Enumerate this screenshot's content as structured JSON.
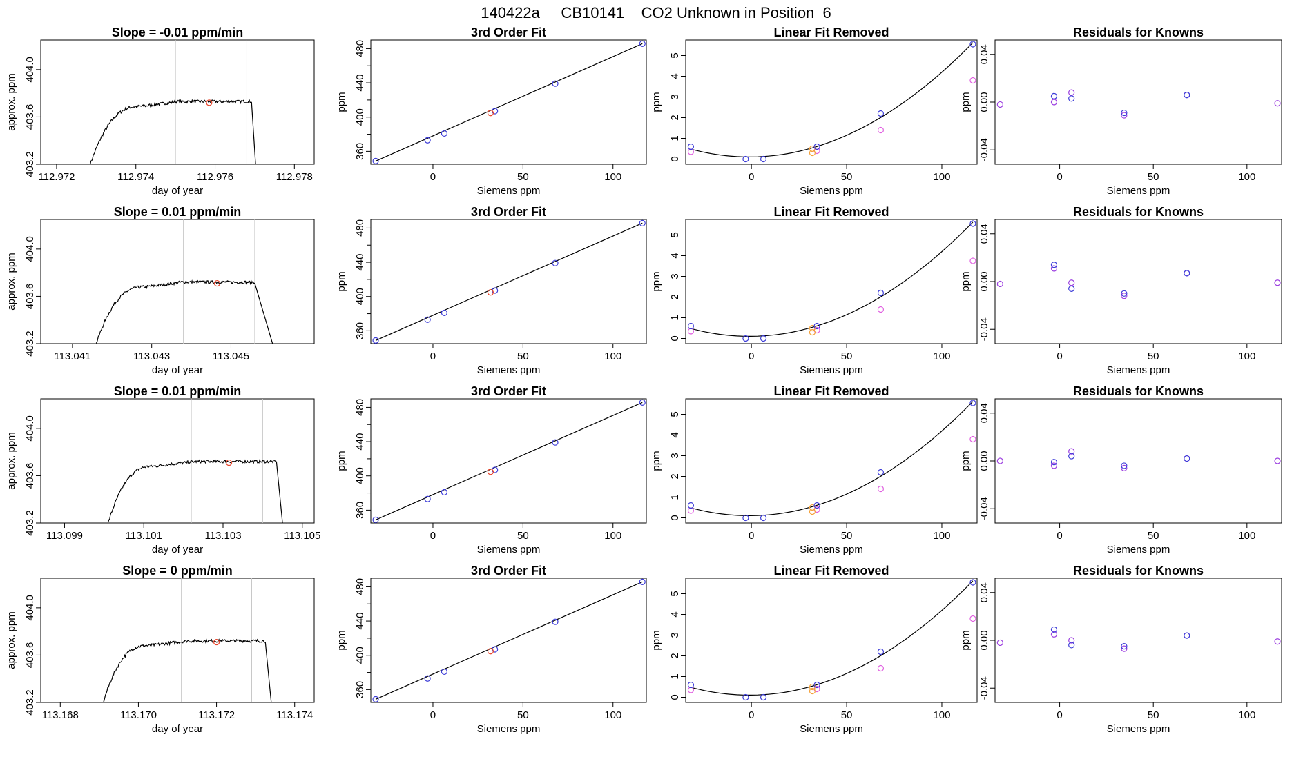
{
  "figure_title": "140422a     CB10141    CO2 Unknown in Position  6",
  "colors": {
    "trace": "#000000",
    "guide": "#c8c8c8",
    "unknown_point": "#e8442a",
    "blue_point": "#3d3dd8",
    "violet_point": "#9c3fe0",
    "orange_point": "#f5a23a",
    "magenta_point": "#e060e0"
  },
  "common": {
    "fit_title": "3rd Order Fit",
    "fit_ylabel": "ppm",
    "fit_xlabel": "Siemens ppm",
    "lin_title": "Linear Fit Removed",
    "lin_ylabel": "ppm",
    "lin_xlabel": "Siemens ppm",
    "res_title": "Residuals for Knowns",
    "res_ylabel": "ppm",
    "res_xlabel": "Siemens ppm",
    "ts_ylabel": "approx. ppm",
    "ts_xlabel": "day of year"
  },
  "chart_data": [
    {
      "row": 1,
      "timeseries": {
        "type": "line",
        "title": "Slope =  -0.01  ppm/min",
        "xlim": [
          112.9716,
          112.9785
        ],
        "ylim": [
          403.2,
          404.25
        ],
        "xticks": [
          112.972,
          112.974,
          112.976,
          112.978
        ],
        "xticklabels": [
          "112.972",
          "112.974",
          "112.976",
          "112.978"
        ],
        "yticks": [
          403.2,
          403.6,
          404.0
        ],
        "yticklabels": [
          "403.2",
          "403.6",
          "404.0"
        ],
        "t_start": 112.97285,
        "t_plateau": 112.97415,
        "t_drop": 112.97692,
        "t_end": 112.97702,
        "base": 403.2,
        "level": 403.72,
        "guides": [
          112.975,
          112.9768
        ],
        "marker": [
          112.97585,
          403.72
        ]
      },
      "fit": {
        "type": "scatter",
        "knowns_x": [
          -31.8,
          -3.0,
          6.3,
          34.4,
          67.9,
          116.3
        ],
        "knowns_y": [
          348.7,
          373.0,
          380.9,
          407.0,
          439.1,
          485.7
        ],
        "unknown_x": [
          32.0
        ],
        "unknown_y": [
          404.8
        ],
        "curve": [
          [
            -31.8,
            348.7
          ],
          [
            116.3,
            485.7
          ]
        ]
      },
      "linear_removed": {
        "type": "scatter",
        "blue_x": [
          -31.8,
          -3.0,
          6.3,
          34.4,
          67.9,
          116.3
        ],
        "blue_y": [
          0.6,
          0.0,
          0.0,
          0.6,
          2.2,
          5.55
        ],
        "magenta_x": [
          -31.8,
          34.4,
          67.9,
          116.3
        ],
        "magenta_y": [
          0.35,
          0.4,
          1.4,
          3.8
        ],
        "unknown_x": [
          32.0,
          32.0
        ],
        "unknown_y": [
          0.5,
          0.3
        ]
      },
      "residuals": {
        "type": "scatter",
        "blue_x": [
          -3.0,
          6.3,
          34.4,
          67.9
        ],
        "blue_y": [
          0.005,
          0.003,
          -0.009,
          0.006
        ],
        "violet_x": [
          -31.8,
          -3.0,
          6.3,
          34.4,
          67.9,
          116.3
        ],
        "violet_y": [
          -0.002,
          0.0,
          0.008,
          -0.011,
          0.006,
          -0.001
        ]
      }
    },
    {
      "row": 2,
      "timeseries": {
        "type": "line",
        "title": "Slope =  0.01  ppm/min",
        "xlim": [
          113.0402,
          113.0471
        ],
        "ylim": [
          403.2,
          404.25
        ],
        "xticks": [
          113.041,
          113.043,
          113.045
        ],
        "xticklabels": [
          "113.041",
          "113.043",
          "113.045"
        ],
        "yticks": [
          403.2,
          403.6,
          404.0
        ],
        "yticklabels": [
          "403.2",
          "403.6",
          "404.0"
        ],
        "t_start": 113.0416,
        "t_plateau": 113.04285,
        "t_drop": 113.0456,
        "t_end": 113.04605,
        "base": 403.2,
        "level": 403.71,
        "guides": [
          113.0438,
          113.0456
        ],
        "marker": [
          113.04465,
          403.71
        ]
      },
      "fit": {
        "type": "scatter",
        "knowns_x": [
          -31.8,
          -3.0,
          6.3,
          34.4,
          67.9,
          116.3
        ],
        "knowns_y": [
          348.7,
          373.0,
          380.9,
          407.0,
          439.1,
          485.7
        ],
        "unknown_x": [
          32.0
        ],
        "unknown_y": [
          404.8
        ],
        "curve": [
          [
            -31.8,
            348.7
          ],
          [
            116.3,
            485.7
          ]
        ]
      },
      "linear_removed": {
        "type": "scatter",
        "blue_x": [
          -31.8,
          -3.0,
          6.3,
          34.4,
          67.9,
          116.3
        ],
        "blue_y": [
          0.6,
          0.0,
          0.0,
          0.6,
          2.2,
          5.55
        ],
        "magenta_x": [
          -31.8,
          34.4,
          67.9,
          116.3
        ],
        "magenta_y": [
          0.35,
          0.4,
          1.4,
          3.75
        ],
        "unknown_x": [
          32.0,
          32.0
        ],
        "unknown_y": [
          0.5,
          0.3
        ]
      },
      "residuals": {
        "type": "scatter",
        "blue_x": [
          -3.0,
          6.3,
          34.4,
          67.9
        ],
        "blue_y": [
          0.014,
          -0.006,
          -0.01,
          0.007
        ],
        "violet_x": [
          -31.8,
          -3.0,
          6.3,
          34.4,
          67.9,
          116.3
        ],
        "violet_y": [
          -0.002,
          0.011,
          -0.001,
          -0.012,
          0.007,
          -0.001
        ]
      }
    },
    {
      "row": 3,
      "timeseries": {
        "type": "line",
        "title": "Slope =  0.01  ppm/min",
        "xlim": [
          113.0984,
          113.1053
        ],
        "ylim": [
          403.2,
          404.25
        ],
        "xticks": [
          113.099,
          113.101,
          113.103,
          113.105
        ],
        "xticklabels": [
          "113.099",
          "113.101",
          "113.103",
          "113.105"
        ],
        "yticks": [
          403.2,
          403.6,
          404.0
        ],
        "yticklabels": [
          "403.2",
          "403.6",
          "404.0"
        ],
        "t_start": 113.1001,
        "t_plateau": 113.10125,
        "t_drop": 113.10435,
        "t_end": 113.1045,
        "base": 403.2,
        "level": 403.71,
        "guides": [
          113.1022,
          113.104
        ],
        "marker": [
          113.10315,
          403.71
        ]
      },
      "fit": {
        "type": "scatter",
        "knowns_x": [
          -31.8,
          -3.0,
          6.3,
          34.4,
          67.9,
          116.3
        ],
        "knowns_y": [
          348.7,
          373.0,
          380.9,
          407.0,
          439.1,
          485.7
        ],
        "unknown_x": [
          32.0
        ],
        "unknown_y": [
          404.8
        ],
        "curve": [
          [
            -31.8,
            348.7
          ],
          [
            116.3,
            485.7
          ]
        ]
      },
      "linear_removed": {
        "type": "scatter",
        "blue_x": [
          -31.8,
          -3.0,
          6.3,
          34.4,
          67.9,
          116.3
        ],
        "blue_y": [
          0.6,
          0.0,
          0.0,
          0.6,
          2.2,
          5.55
        ],
        "magenta_x": [
          -31.8,
          34.4,
          67.9,
          116.3
        ],
        "magenta_y": [
          0.35,
          0.4,
          1.4,
          3.8
        ],
        "unknown_x": [
          32.0,
          32.0
        ],
        "unknown_y": [
          0.5,
          0.3
        ]
      },
      "residuals": {
        "type": "scatter",
        "blue_x": [
          -3.0,
          6.3,
          34.4,
          67.9
        ],
        "blue_y": [
          -0.001,
          0.004,
          -0.004,
          0.002
        ],
        "violet_x": [
          -31.8,
          -3.0,
          6.3,
          34.4,
          67.9,
          116.3
        ],
        "violet_y": [
          0.0,
          -0.004,
          0.008,
          -0.006,
          0.002,
          0.0
        ]
      }
    },
    {
      "row": 4,
      "timeseries": {
        "type": "line",
        "title": "Slope =  0  ppm/min",
        "xlim": [
          113.1675,
          113.1745
        ],
        "ylim": [
          403.2,
          404.25
        ],
        "xticks": [
          113.168,
          113.17,
          113.172,
          113.174
        ],
        "xticklabels": [
          "113.168",
          "113.170",
          "113.172",
          "113.174"
        ],
        "yticks": [
          403.2,
          403.6,
          404.0
        ],
        "yticklabels": [
          "403.2",
          "403.6",
          "404.0"
        ],
        "t_start": 113.1691,
        "t_plateau": 113.17025,
        "t_drop": 113.17325,
        "t_end": 113.1734,
        "base": 403.2,
        "level": 403.71,
        "guides": [
          113.1711,
          113.1729
        ],
        "marker": [
          113.172,
          403.71
        ]
      },
      "fit": {
        "type": "scatter",
        "knowns_x": [
          -31.8,
          -3.0,
          6.3,
          34.4,
          67.9,
          116.3
        ],
        "knowns_y": [
          348.7,
          373.0,
          380.9,
          407.0,
          439.1,
          485.7
        ],
        "unknown_x": [
          32.0
        ],
        "unknown_y": [
          404.8
        ],
        "curve": [
          [
            -31.8,
            348.7
          ],
          [
            116.3,
            485.7
          ]
        ]
      },
      "linear_removed": {
        "type": "scatter",
        "blue_x": [
          -31.8,
          -3.0,
          6.3,
          34.4,
          67.9,
          116.3
        ],
        "blue_y": [
          0.6,
          0.0,
          0.0,
          0.6,
          2.2,
          5.55
        ],
        "magenta_x": [
          -31.8,
          34.4,
          67.9,
          116.3
        ],
        "magenta_y": [
          0.35,
          0.4,
          1.4,
          3.8
        ],
        "unknown_x": [
          32.0,
          32.0
        ],
        "unknown_y": [
          0.5,
          0.3
        ]
      },
      "residuals": {
        "type": "scatter",
        "blue_x": [
          -3.0,
          6.3,
          34.4,
          67.9
        ],
        "blue_y": [
          0.009,
          -0.004,
          -0.005,
          0.004
        ],
        "violet_x": [
          -31.8,
          -3.0,
          6.3,
          34.4,
          67.9,
          116.3
        ],
        "violet_y": [
          -0.002,
          0.005,
          0.0,
          -0.007,
          0.004,
          -0.001
        ]
      }
    }
  ],
  "axes": {
    "fit": {
      "xlim": [
        -34.5,
        118.5
      ],
      "ylim": [
        345,
        490
      ],
      "xticks": [
        0,
        50,
        100
      ],
      "xticklabels": [
        "0",
        "50",
        "100"
      ],
      "yticks": [
        360,
        400,
        440,
        480
      ],
      "yticklabels": [
        "360",
        "400",
        "440",
        "480"
      ],
      "yminor": [
        340,
        380,
        420,
        460
      ]
    },
    "linear_removed": {
      "xlim": [
        -34.5,
        118.5
      ],
      "ylim": [
        -0.25,
        5.75
      ],
      "xticks": [
        0,
        50,
        100
      ],
      "xticklabels": [
        "0",
        "50",
        "100"
      ],
      "yticks": [
        0,
        1,
        2,
        3,
        4,
        5
      ],
      "yticklabels": [
        "0",
        "1",
        "2",
        "3",
        "4",
        "5"
      ]
    },
    "residuals": {
      "xlim": [
        -34.5,
        118.5
      ],
      "ylim": [
        -0.052,
        0.052
      ],
      "xticks": [
        0,
        50,
        100
      ],
      "xticklabels": [
        "0",
        "50",
        "100"
      ],
      "yticks": [
        -0.04,
        0.0,
        0.04
      ],
      "yticklabels": [
        "-0.04",
        "0.00",
        "0.04"
      ]
    }
  }
}
